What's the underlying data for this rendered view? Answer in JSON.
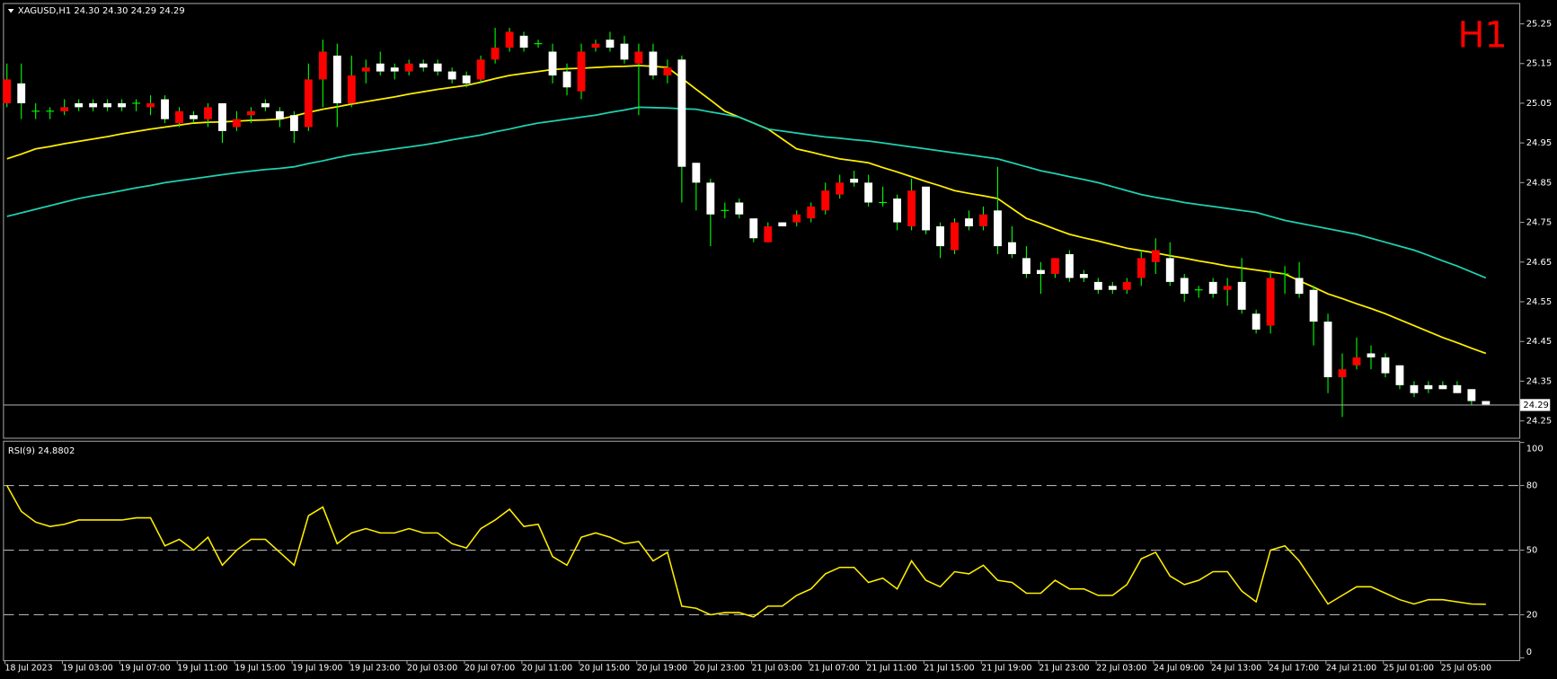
{
  "chart_data": [
    {
      "type": "candlestick",
      "title": "XAGUSD,H1  24.30 24.30 24.29 24.29",
      "badge": "H1",
      "badge_color": "#ff0000",
      "up_color": "#ff0000",
      "down_color": "#ffffff",
      "doji_color": "#00ff00",
      "wick_color": "#00ff00",
      "categories": [
        "18 Jul 2023",
        null,
        null,
        null,
        "19 Jul 03:00",
        null,
        null,
        null,
        "19 Jul 07:00",
        null,
        null,
        null,
        "19 Jul 11:00",
        null,
        null,
        null,
        "19 Jul 15:00",
        null,
        null,
        null,
        "19 Jul 19:00",
        null,
        null,
        null,
        "19 Jul 23:00",
        null,
        null,
        null,
        "20 Jul 03:00",
        null,
        null,
        null,
        "20 Jul 07:00",
        null,
        null,
        null,
        "20 Jul 11:00",
        null,
        null,
        null,
        "20 Jul 15:00",
        null,
        null,
        null,
        "20 Jul 19:00",
        null,
        null,
        null,
        "20 Jul 23:00",
        null,
        null,
        null,
        "21 Jul 03:00",
        null,
        null,
        null,
        "21 Jul 07:00",
        null,
        null,
        null,
        "21 Jul 11:00",
        null,
        null,
        null,
        "21 Jul 15:00",
        null,
        null,
        null,
        "21 Jul 19:00",
        null,
        null,
        null,
        "21 Jul 23:00",
        null,
        null,
        null,
        "22 Jul 03:00",
        null,
        null,
        null,
        "24 Jul 09:00",
        null,
        null,
        null,
        "24 Jul 13:00",
        null,
        null,
        null,
        "24 Jul 17:00",
        null,
        null,
        null,
        "24 Jul 21:00",
        null,
        null,
        null,
        "25 Jul 01:00",
        null,
        null,
        null,
        "25 Jul 05:00",
        null,
        null,
        null
      ],
      "open": [
        25.05,
        25.1,
        25.03,
        25.03,
        25.03,
        25.05,
        25.05,
        25.05,
        25.05,
        25.05,
        25.04,
        25.06,
        25.0,
        25.02,
        25.01,
        25.05,
        24.99,
        25.02,
        25.05,
        25.03,
        25.02,
        24.99,
        25.11,
        25.17,
        25.05,
        25.13,
        25.15,
        25.14,
        25.13,
        25.15,
        25.15,
        25.13,
        25.12,
        25.11,
        25.16,
        25.19,
        25.22,
        25.2,
        25.18,
        25.13,
        25.08,
        25.19,
        25.21,
        25.2,
        25.15,
        25.18,
        25.12,
        25.16,
        24.9,
        24.85,
        24.78,
        24.8,
        24.76,
        24.7,
        24.75,
        24.75,
        24.76,
        24.78,
        24.82,
        24.86,
        24.85,
        24.8,
        24.81,
        24.74,
        24.84,
        24.74,
        24.68,
        24.76,
        24.74,
        24.78,
        24.7,
        24.66,
        24.63,
        24.62,
        24.67,
        24.62,
        24.6,
        24.59,
        24.58,
        24.61,
        24.65,
        24.66,
        24.61,
        24.58,
        24.6,
        24.58,
        24.6,
        24.52,
        24.49,
        24.62,
        24.61,
        24.58,
        24.5,
        24.36,
        24.39,
        24.42,
        24.41,
        24.39,
        24.34,
        24.34,
        24.34,
        24.34,
        24.33,
        24.3
      ],
      "high": [
        25.15,
        25.15,
        25.05,
        25.04,
        25.06,
        25.06,
        25.06,
        25.06,
        25.06,
        25.06,
        25.07,
        25.07,
        25.04,
        25.03,
        25.05,
        25.05,
        25.03,
        25.04,
        25.06,
        25.04,
        25.03,
        25.15,
        25.21,
        25.2,
        25.17,
        25.16,
        25.18,
        25.15,
        25.16,
        25.16,
        25.16,
        25.14,
        25.13,
        25.17,
        25.24,
        25.24,
        25.23,
        25.21,
        25.2,
        25.15,
        25.2,
        25.21,
        25.23,
        25.22,
        25.2,
        25.2,
        25.16,
        25.17,
        24.9,
        24.86,
        24.8,
        24.81,
        24.76,
        24.75,
        24.75,
        24.78,
        24.8,
        24.85,
        24.87,
        24.88,
        24.87,
        24.84,
        24.82,
        24.86,
        24.84,
        24.75,
        24.76,
        24.78,
        24.79,
        24.89,
        24.74,
        24.69,
        24.65,
        24.66,
        24.68,
        24.63,
        24.61,
        24.6,
        24.61,
        24.68,
        24.71,
        24.7,
        24.62,
        24.59,
        24.61,
        24.61,
        24.66,
        24.53,
        24.63,
        24.64,
        24.65,
        24.59,
        24.52,
        24.42,
        24.46,
        24.44,
        24.42,
        24.39,
        24.35,
        24.35,
        24.35,
        24.35,
        24.33,
        24.3
      ],
      "low": [
        25.04,
        25.01,
        25.01,
        25.01,
        25.02,
        25.03,
        25.03,
        25.03,
        25.03,
        25.03,
        25.02,
        25.0,
        24.99,
        25.0,
        24.99,
        24.95,
        24.98,
        25.0,
        25.03,
        24.99,
        24.95,
        24.98,
        25.04,
        24.99,
        25.04,
        25.1,
        25.12,
        25.11,
        25.12,
        25.13,
        25.12,
        25.1,
        25.09,
        25.1,
        25.15,
        25.18,
        25.18,
        25.19,
        25.1,
        25.07,
        25.06,
        25.18,
        25.18,
        25.15,
        25.02,
        25.11,
        25.1,
        24.8,
        24.78,
        24.69,
        24.76,
        24.76,
        24.7,
        24.7,
        24.74,
        24.74,
        24.75,
        24.77,
        24.81,
        24.84,
        24.79,
        24.79,
        24.73,
        24.73,
        24.72,
        24.66,
        24.67,
        24.73,
        24.73,
        24.67,
        24.66,
        24.61,
        24.57,
        24.61,
        24.6,
        24.6,
        24.57,
        24.57,
        24.57,
        24.59,
        24.62,
        24.59,
        24.55,
        24.56,
        24.56,
        24.54,
        24.52,
        24.47,
        24.47,
        24.57,
        24.56,
        24.44,
        24.32,
        24.26,
        24.38,
        24.38,
        24.36,
        24.33,
        24.31,
        24.32,
        24.33,
        24.32,
        24.29,
        24.29
      ],
      "close": [
        25.11,
        25.05,
        25.03,
        25.03,
        25.04,
        25.04,
        25.04,
        25.04,
        25.04,
        25.05,
        25.05,
        25.01,
        25.03,
        25.01,
        25.04,
        24.98,
        25.01,
        25.03,
        25.04,
        25.01,
        24.98,
        25.11,
        25.18,
        25.05,
        25.12,
        25.14,
        25.13,
        25.13,
        25.15,
        25.14,
        25.13,
        25.11,
        25.1,
        25.16,
        25.19,
        25.23,
        25.19,
        25.2,
        25.12,
        25.09,
        25.18,
        25.2,
        25.19,
        25.16,
        25.18,
        25.12,
        25.14,
        24.89,
        24.85,
        24.77,
        24.78,
        24.77,
        24.71,
        24.74,
        24.74,
        24.77,
        24.79,
        24.83,
        24.85,
        24.85,
        24.8,
        24.8,
        24.75,
        24.83,
        24.73,
        24.69,
        24.75,
        24.74,
        24.77,
        24.69,
        24.67,
        24.62,
        24.62,
        24.66,
        24.61,
        24.61,
        24.58,
        24.58,
        24.6,
        24.66,
        24.68,
        24.6,
        24.57,
        24.58,
        24.57,
        24.59,
        24.53,
        24.48,
        24.61,
        24.62,
        24.57,
        24.5,
        24.36,
        24.38,
        24.41,
        24.41,
        24.37,
        24.34,
        24.32,
        24.33,
        24.33,
        24.32,
        24.3,
        24.29
      ],
      "series": [
        {
          "color": "#ffee00",
          "values": [
            24.91,
            24.922,
            24.935,
            24.941,
            24.948,
            24.954,
            24.96,
            24.966,
            24.973,
            24.979,
            24.985,
            24.99,
            24.995,
            25.0,
            25.002,
            25.003,
            25.005,
            25.007,
            25.008,
            25.01,
            25.018,
            25.027,
            25.035,
            25.041,
            25.048,
            25.054,
            25.06,
            25.066,
            25.073,
            25.079,
            25.085,
            25.09,
            25.095,
            25.103,
            25.112,
            25.12,
            25.125,
            25.13,
            25.135,
            25.137,
            25.138,
            25.14,
            25.142,
            25.143,
            25.145,
            25.143,
            25.14,
            25.113,
            25.085,
            25.058,
            25.03,
            25.015,
            25.0,
            24.985,
            24.96,
            24.935,
            24.927,
            24.918,
            24.91,
            24.905,
            24.9,
            24.888,
            24.877,
            24.865,
            24.853,
            24.842,
            24.83,
            24.823,
            24.817,
            24.81,
            24.785,
            24.76,
            24.747,
            24.733,
            24.72,
            24.711,
            24.703,
            24.694,
            24.685,
            24.679,
            24.673,
            24.666,
            24.66,
            24.653,
            24.647,
            24.64,
            24.635,
            24.63,
            24.625,
            24.62,
            24.603,
            24.587,
            24.57,
            24.558,
            24.545,
            24.533,
            24.52,
            24.505,
            24.49,
            24.475,
            24.46,
            24.447,
            24.433,
            24.42
          ]
        },
        {
          "color": "#1fd1b0",
          "values": [
            24.765,
            24.774,
            24.783,
            24.792,
            24.801,
            24.81,
            24.817,
            24.823,
            24.83,
            24.837,
            24.843,
            24.85,
            24.855,
            24.86,
            24.865,
            24.87,
            24.875,
            24.879,
            24.883,
            24.886,
            24.89,
            24.898,
            24.905,
            24.913,
            24.92,
            24.925,
            24.93,
            24.935,
            24.94,
            24.945,
            24.951,
            24.958,
            24.964,
            24.97,
            24.978,
            24.985,
            24.993,
            25.0,
            25.005,
            25.01,
            25.015,
            25.02,
            25.027,
            25.033,
            25.04,
            25.039,
            25.038,
            25.036,
            25.035,
            25.028,
            25.022,
            25.015,
            25.0,
            24.985,
            24.98,
            24.975,
            24.97,
            24.965,
            24.962,
            24.958,
            24.955,
            24.95,
            24.945,
            24.94,
            24.935,
            24.93,
            24.925,
            24.92,
            24.915,
            24.91,
            24.9,
            24.89,
            24.88,
            24.873,
            24.865,
            24.858,
            24.85,
            24.84,
            24.83,
            24.82,
            24.813,
            24.807,
            24.8,
            24.795,
            24.79,
            24.785,
            24.78,
            24.775,
            24.765,
            24.755,
            24.748,
            24.741,
            24.734,
            24.727,
            24.72,
            24.71,
            24.7,
            24.69,
            24.68,
            24.667,
            24.653,
            24.64,
            24.625,
            24.61
          ]
        }
      ],
      "ylim": [
        24.21,
        25.2975
      ],
      "yticks": [
        25.25,
        25.15,
        25.05,
        24.95,
        24.85,
        24.75,
        24.65,
        24.55,
        24.45,
        24.35,
        24.25
      ],
      "current_price": 24.29
    },
    {
      "type": "line",
      "title": "RSI(9) 24.8802",
      "color": "#ffee00",
      "values": [
        80,
        68,
        63,
        61,
        62,
        64,
        64,
        64,
        64,
        65,
        65,
        52,
        55,
        50,
        56,
        43,
        50,
        55,
        55,
        49,
        43,
        66,
        70,
        53,
        58,
        60,
        58,
        58,
        60,
        58,
        58,
        53,
        51,
        60,
        64,
        69,
        61,
        62,
        47,
        43,
        56,
        58,
        56,
        53,
        54,
        45,
        49,
        24,
        23,
        20,
        21,
        21,
        19,
        24,
        24,
        29,
        32,
        39,
        42,
        42,
        35,
        37,
        32,
        45,
        36,
        33,
        40,
        39,
        43,
        36,
        35,
        30,
        30,
        36,
        32,
        32,
        29,
        29,
        34,
        46,
        49,
        38,
        34,
        36,
        40,
        40,
        31,
        26,
        50,
        52,
        45,
        35,
        25,
        29,
        33,
        33,
        30,
        27,
        25,
        27,
        27,
        26,
        25,
        24.88
      ],
      "ylim": [
        0,
        100
      ],
      "yticks": [
        100,
        80,
        50,
        20,
        0
      ],
      "levels": [
        80,
        50,
        20
      ]
    }
  ]
}
